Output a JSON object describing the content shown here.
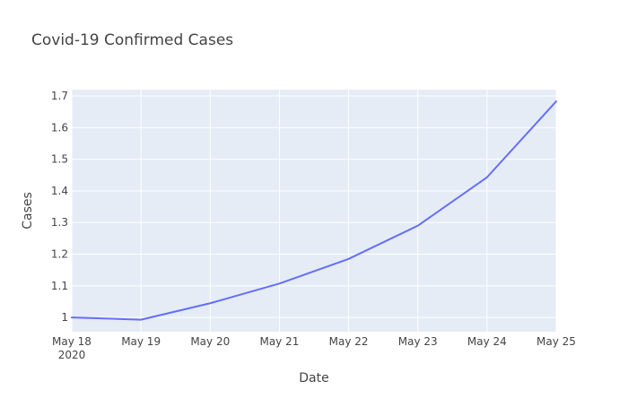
{
  "chart_data": {
    "type": "line",
    "title": "Covid-19 Confirmed Cases",
    "xlabel": "Date",
    "ylabel": "Cases",
    "x": [
      "2020-05-18",
      "2020-05-19",
      "2020-05-20",
      "2020-05-21",
      "2020-05-22",
      "2020-05-23",
      "2020-05-24",
      "2020-05-25"
    ],
    "x_tick_labels": [
      "May 18",
      "May 19",
      "May 20",
      "May 21",
      "May 22",
      "May 23",
      "May 24",
      "May 25"
    ],
    "x_tick_year": "2020",
    "y_ticks": [
      "1",
      "1.1",
      "1.2",
      "1.3",
      "1.4",
      "1.5",
      "1.6",
      "1.7"
    ],
    "ylim": [
      0.955,
      1.72
    ],
    "series": [
      {
        "values": [
          1.0,
          0.993,
          1.045,
          1.107,
          1.185,
          1.29,
          1.443,
          1.683
        ],
        "color": "#636efa"
      }
    ],
    "grid": true,
    "plot_background": "#e5ecf6",
    "grid_color": "#ffffff"
  }
}
